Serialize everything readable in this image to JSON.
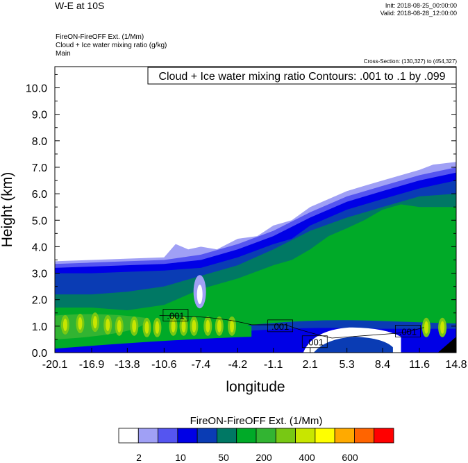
{
  "header": {
    "title": "W-E at 10S",
    "init": "Init: 2018-08-25_00:00:00",
    "valid": "Valid: 2018-08-28_12:00:00",
    "field_lines": [
      "FireON-FireOFF Ext.   (1/Mm)",
      "Cloud + Ice water mixing ratio   (g/kg)",
      "Main"
    ],
    "cross_section": "Cross-Section: (130,327) to (454,327)"
  },
  "chart_data": {
    "type": "heatmap",
    "title": "",
    "contour_label": "Cloud + Ice water mixing ratio Contours: .001 to .1 by .099",
    "xlabel": "longitude",
    "ylabel": "Height (km)",
    "xlim": [
      -20.1,
      14.8
    ],
    "ylim": [
      0.0,
      10.8
    ],
    "x_ticks": [
      "-20.1",
      "-16.9",
      "-13.8",
      "-10.6",
      "-7.4",
      "-4.2",
      "-1.1",
      "2.1",
      "5.3",
      "8.4",
      "11.6",
      "14.8"
    ],
    "y_ticks": [
      "0.0",
      "1.0",
      "2.0",
      "3.0",
      "4.0",
      "5.0",
      "6.0",
      "7.0",
      "8.0",
      "9.0",
      "10.0"
    ],
    "contour_annotations": [
      {
        "text": ".001",
        "lon": -9.6,
        "height": 1.4
      },
      {
        "text": ".001",
        "lon": -0.5,
        "height": 1.0
      },
      {
        "text": ".001",
        "lon": 2.5,
        "height": 0.4
      },
      {
        "text": ".001",
        "lon": 10.6,
        "height": 0.8
      }
    ],
    "colorbar": {
      "title": "FireON-FireOFF Ext.  (1/Mm)",
      "colors": [
        "#ffffff",
        "#a0a0f5",
        "#5555f0",
        "#0000e6",
        "#0a3cb4",
        "#007864",
        "#00aa28",
        "#32b432",
        "#78c814",
        "#c8e600",
        "#ffff00",
        "#ffaa00",
        "#ff6400",
        "#ff0000"
      ],
      "labels": [
        "2",
        "10",
        "50",
        "200",
        "400",
        "600"
      ]
    },
    "envelopes": [
      {
        "level": 1,
        "color": "#a0a0f5",
        "top": [
          [
            -20.1,
            3.45
          ],
          [
            -16.9,
            3.5
          ],
          [
            -13.8,
            3.55
          ],
          [
            -10.6,
            3.6
          ],
          [
            -9.6,
            4.1
          ],
          [
            -8.5,
            3.9
          ],
          [
            -7.4,
            4.0
          ],
          [
            -6.0,
            3.9
          ],
          [
            -4.2,
            4.3
          ],
          [
            -2.5,
            4.4
          ],
          [
            -1.1,
            4.8
          ],
          [
            0.5,
            5.0
          ],
          [
            2.1,
            5.5
          ],
          [
            3.7,
            5.8
          ],
          [
            5.3,
            6.1
          ],
          [
            6.8,
            6.3
          ],
          [
            8.4,
            6.5
          ],
          [
            10.0,
            6.7
          ],
          [
            11.6,
            6.9
          ],
          [
            12.8,
            7.1
          ],
          [
            14.8,
            7.2
          ]
        ]
      },
      {
        "level": 2,
        "color": "#5555f0",
        "top": [
          [
            -20.1,
            3.35
          ],
          [
            -16.9,
            3.4
          ],
          [
            -13.8,
            3.45
          ],
          [
            -10.6,
            3.5
          ],
          [
            -7.4,
            3.7
          ],
          [
            -4.2,
            4.1
          ],
          [
            -1.1,
            4.6
          ],
          [
            2.1,
            5.3
          ],
          [
            5.3,
            5.9
          ],
          [
            8.4,
            6.3
          ],
          [
            11.6,
            6.7
          ],
          [
            14.8,
            7.0
          ]
        ]
      },
      {
        "level": 3,
        "color": "#0000e6",
        "top": [
          [
            -20.1,
            3.2
          ],
          [
            -16.9,
            3.25
          ],
          [
            -13.8,
            3.3
          ],
          [
            -10.6,
            3.35
          ],
          [
            -7.4,
            3.5
          ],
          [
            -4.2,
            3.9
          ],
          [
            -1.1,
            4.4
          ],
          [
            2.1,
            5.1
          ],
          [
            5.3,
            5.7
          ],
          [
            8.4,
            6.1
          ],
          [
            11.6,
            6.5
          ],
          [
            14.8,
            6.8
          ]
        ]
      },
      {
        "level": 4,
        "color": "#0a3cb4",
        "top": [
          [
            -20.1,
            3.0
          ],
          [
            -16.9,
            3.0
          ],
          [
            -13.8,
            3.05
          ],
          [
            -10.6,
            3.1
          ],
          [
            -7.4,
            3.2
          ],
          [
            -4.2,
            3.6
          ],
          [
            -1.1,
            4.1
          ],
          [
            0.5,
            4.3
          ],
          [
            2.1,
            4.8
          ],
          [
            5.3,
            5.4
          ],
          [
            8.4,
            5.8
          ],
          [
            11.6,
            6.2
          ],
          [
            14.8,
            6.5
          ]
        ]
      },
      {
        "level": 5,
        "color": "#007864",
        "top": [
          [
            -20.1,
            2.2
          ],
          [
            -16.9,
            2.2
          ],
          [
            -13.8,
            2.3
          ],
          [
            -10.6,
            2.5
          ],
          [
            -7.4,
            2.9
          ],
          [
            -4.2,
            3.3
          ],
          [
            -1.1,
            3.9
          ],
          [
            2.1,
            4.6
          ],
          [
            5.3,
            5.1
          ],
          [
            8.4,
            5.5
          ],
          [
            11.6,
            5.9
          ],
          [
            14.8,
            6.0
          ]
        ]
      },
      {
        "level": 6,
        "color": "#00aa28",
        "top": [
          [
            -20.1,
            1.7
          ],
          [
            -16.9,
            1.7
          ],
          [
            -13.8,
            1.6
          ],
          [
            -10.6,
            1.8
          ],
          [
            -7.4,
            2.4
          ],
          [
            -4.2,
            2.8
          ],
          [
            -1.1,
            3.3
          ],
          [
            0.5,
            3.5
          ],
          [
            2.1,
            3.9
          ],
          [
            3.7,
            4.4
          ],
          [
            5.3,
            4.7
          ],
          [
            6.8,
            5.0
          ],
          [
            8.4,
            5.4
          ],
          [
            10.0,
            5.6
          ],
          [
            11.6,
            5.5
          ],
          [
            14.8,
            5.5
          ]
        ]
      }
    ]
  }
}
